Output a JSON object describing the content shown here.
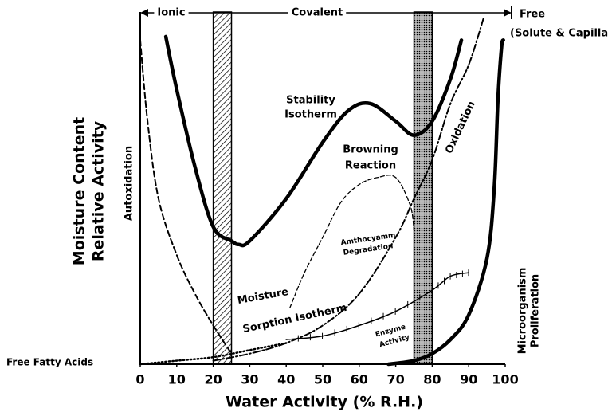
{
  "chart_data": {
    "type": "line",
    "x_label": "Water Activity (% R.H.)",
    "y_label": [
      "Moisture Content",
      "Relative Activity"
    ],
    "xlim": [
      0,
      100
    ],
    "xticks": [
      0,
      10,
      20,
      30,
      40,
      50,
      60,
      70,
      80,
      90,
      100
    ],
    "ylim": [
      0,
      100
    ],
    "bands": [
      {
        "from": 20,
        "to": 25,
        "fill": "hatch"
      },
      {
        "from": 75,
        "to": 80,
        "fill": "dots"
      }
    ],
    "zones": [
      "Ionic",
      "Covalent",
      "Free",
      "(Solute & Capillary)"
    ],
    "annotations": [
      "Autoxidation",
      "Free Fatty Acids",
      "Stability",
      "Isotherm",
      "Browning",
      "Reaction",
      "Oxidation",
      "Moisture",
      "Sorption Isotherm",
      "Amthocyamm",
      "Degradation",
      "Enzyme",
      "Activity",
      "Microorganism",
      "Proliferation"
    ],
    "series": [
      {
        "style": "thick",
        "x": [
          7,
          10,
          15,
          20,
          25,
          27,
          30,
          40,
          50,
          57,
          63,
          70,
          75,
          80,
          85,
          88
        ],
        "values": [
          93,
          78,
          56,
          39,
          35,
          34,
          35,
          47,
          63,
          72,
          74,
          69,
          65,
          69,
          81,
          92
        ]
      },
      {
        "style": "dashed",
        "x": [
          0,
          2,
          5,
          10,
          15,
          20,
          25
        ],
        "values": [
          92,
          69,
          47,
          31,
          20,
          11,
          3
        ]
      },
      {
        "style": "dashdot",
        "x": [
          20,
          30,
          40,
          50,
          60,
          70,
          75,
          80,
          85,
          90,
          94
        ],
        "values": [
          1,
          3,
          6,
          11,
          20,
          36,
          47,
          58,
          74,
          85,
          98
        ]
      },
      {
        "style": "thindash",
        "x": [
          41,
          45,
          50,
          55,
          60,
          65,
          70,
          74,
          75
        ],
        "values": [
          16,
          26,
          36,
          46,
          51,
          53,
          53,
          45,
          38
        ]
      },
      {
        "style": "dotted",
        "x": [
          0,
          10,
          20,
          30,
          40
        ],
        "values": [
          0,
          1,
          2,
          4,
          6
        ]
      },
      {
        "style": "ticked",
        "x": [
          40,
          50,
          60,
          70,
          80,
          85,
          90
        ],
        "values": [
          7,
          8,
          11,
          15,
          21,
          25,
          26
        ]
      },
      {
        "style": "thick",
        "x": [
          68,
          75,
          80,
          85,
          90,
          95,
          97,
          98,
          99,
          99.5
        ],
        "values": [
          0,
          1,
          3,
          7,
          14,
          30,
          50,
          75,
          90,
          92
        ]
      }
    ]
  }
}
